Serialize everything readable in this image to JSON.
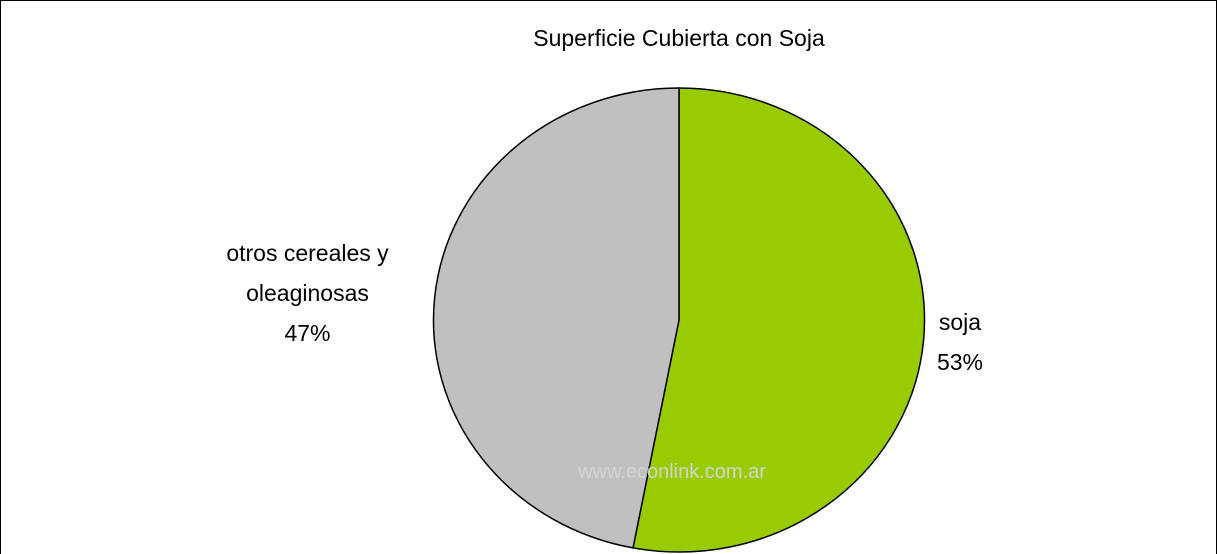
{
  "chart_data": {
    "type": "pie",
    "title": "Superficie Cubierta con Soja",
    "categories": [
      "soja",
      "otros cereales y oleaginosas"
    ],
    "values": [
      53,
      47
    ],
    "value_labels": [
      "53%",
      "47%"
    ],
    "colors": [
      "#99cc00",
      "#c0c0c0"
    ],
    "watermark": "www.econlink.com.ar"
  }
}
